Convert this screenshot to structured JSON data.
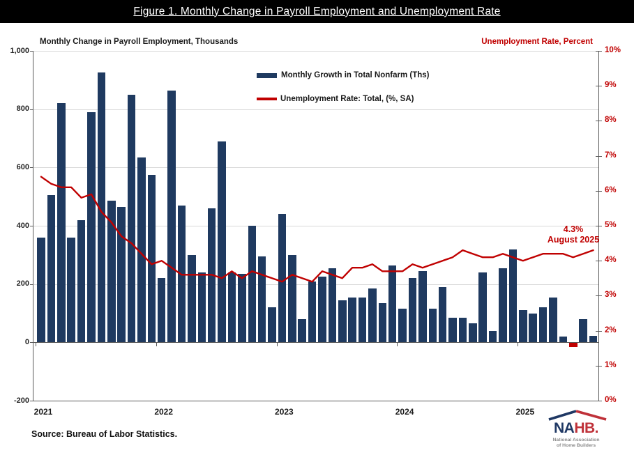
{
  "banner": {
    "title": "Figure 1. Monthly Change in Payroll Employment and Unemployment Rate"
  },
  "chart": {
    "left_tick_labels": [
      "1,000",
      "800",
      "600",
      "400",
      "200",
      "0",
      "-200"
    ],
    "right_tick_labels": [
      "10%",
      "9%",
      "8%",
      "7%",
      "6%",
      "5%",
      "4%",
      "3%",
      "2%",
      "1%",
      "0%"
    ],
    "year_labels": [
      "2021",
      "2022",
      "2023",
      "2024",
      "2025"
    ]
  },
  "annotation": {
    "line1": "4.3%",
    "line2": "August 2025"
  },
  "source": {
    "text": "Source: Bureau of Labor Statistics."
  },
  "logo": {
    "name_navy": "NA",
    "name_red": "HB.",
    "sub1": "National Association",
    "sub2": "of Home Builders"
  },
  "colors": {
    "bar": "#1f3a60",
    "bar_negative": "#c00000",
    "line": "#c00000",
    "right_axis_text": "#c00000",
    "gridline": "#d9d9d9",
    "axis": "#595959",
    "banner_bg": "#000000",
    "banner_text": "#ffffff",
    "logo_navy": "#1f3864",
    "logo_red": "#bf3139",
    "logo_gray": "#8a8a8a"
  },
  "chart_data": {
    "type": "combo",
    "title": "Figure 1. Monthly Change in Payroll Employment and Unemployment Rate",
    "categories": [
      "Jan 2021",
      "Feb 2021",
      "Mar 2021",
      "Apr 2021",
      "May 2021",
      "Jun 2021",
      "Jul 2021",
      "Aug 2021",
      "Sep 2021",
      "Oct 2021",
      "Nov 2021",
      "Dec 2021",
      "Jan 2022",
      "Feb 2022",
      "Mar 2022",
      "Apr 2022",
      "May 2022",
      "Jun 2022",
      "Jul 2022",
      "Aug 2022",
      "Sep 2022",
      "Oct 2022",
      "Nov 2022",
      "Dec 2022",
      "Jan 2023",
      "Feb 2023",
      "Mar 2023",
      "Apr 2023",
      "May 2023",
      "Jun 2023",
      "Jul 2023",
      "Aug 2023",
      "Sep 2023",
      "Oct 2023",
      "Nov 2023",
      "Dec 2023",
      "Jan 2024",
      "Feb 2024",
      "Mar 2024",
      "Apr 2024",
      "May 2024",
      "Jun 2024",
      "Jul 2024",
      "Aug 2024",
      "Sep 2024",
      "Oct 2024",
      "Nov 2024",
      "Dec 2024",
      "Jan 2025",
      "Feb 2025",
      "Mar 2025",
      "Apr 2025",
      "May 2025",
      "Jun 2025",
      "Jul 2025",
      "Aug 2025"
    ],
    "series": [
      {
        "name": "Monthly Growth in Total Nonfarm (Ths)",
        "type": "bar",
        "axis": "left",
        "values": [
          360,
          505,
          820,
          360,
          420,
          790,
          925,
          485,
          465,
          850,
          635,
          575,
          220,
          865,
          470,
          300,
          240,
          460,
          690,
          240,
          235,
          400,
          295,
          120,
          440,
          300,
          80,
          210,
          225,
          255,
          145,
          155,
          155,
          185,
          135,
          265,
          115,
          220,
          245,
          115,
          190,
          85,
          85,
          65,
          240,
          40,
          255,
          320,
          110,
          100,
          120,
          155,
          19,
          -13,
          79,
          22
        ]
      },
      {
        "name": "Unemployment Rate: Total, (%, SA)",
        "type": "line",
        "axis": "right",
        "values": [
          6.4,
          6.2,
          6.1,
          6.1,
          5.8,
          5.9,
          5.4,
          5.1,
          4.7,
          4.5,
          4.2,
          3.9,
          4.0,
          3.8,
          3.6,
          3.6,
          3.6,
          3.6,
          3.5,
          3.7,
          3.5,
          3.7,
          3.6,
          3.5,
          3.4,
          3.6,
          3.5,
          3.4,
          3.7,
          3.6,
          3.5,
          3.8,
          3.8,
          3.9,
          3.7,
          3.7,
          3.7,
          3.9,
          3.8,
          3.9,
          4.0,
          4.1,
          4.3,
          4.2,
          4.1,
          4.1,
          4.2,
          4.1,
          4.0,
          4.1,
          4.2,
          4.2,
          4.2,
          4.1,
          4.2,
          4.3
        ]
      }
    ],
    "left_axis": {
      "label": "Monthly Change in Payroll Employment, Thousands",
      "min": -200,
      "max": 1000,
      "step": 200
    },
    "right_axis": {
      "label": "Unemployment Rate, Percent",
      "min": 0,
      "max": 10,
      "step": 1,
      "format": "percent"
    },
    "grid": "horizontal",
    "legend_position": "top-center",
    "annotation": {
      "text": "4.3% August 2025",
      "category": "Aug 2025",
      "value": 4.3
    }
  }
}
